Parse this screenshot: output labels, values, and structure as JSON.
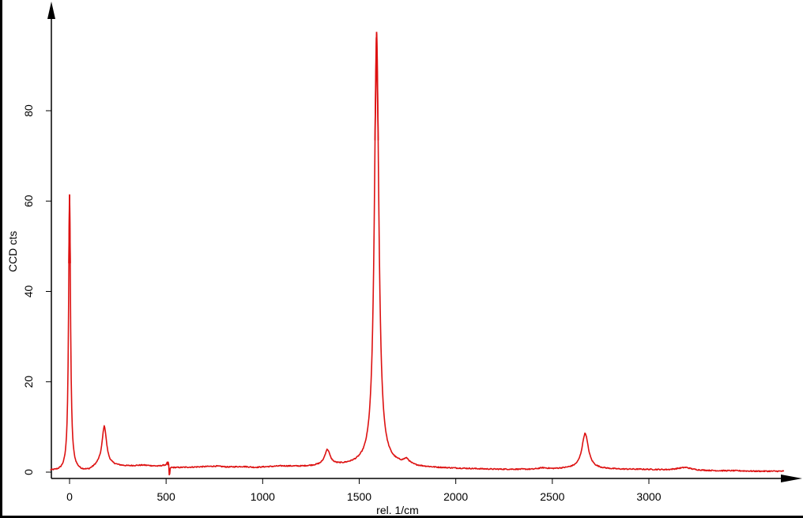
{
  "chart_data": {
    "type": "line",
    "title": "",
    "xlabel": "rel. 1/cm",
    "ylabel": "CCD cts",
    "xlim": [
      -100,
      3700
    ],
    "ylim": [
      0,
      100
    ],
    "grid": false,
    "line_color": "#dd1111",
    "x_ticks": [
      0,
      500,
      1000,
      1500,
      2000,
      2500,
      3000
    ],
    "y_ticks": [
      0,
      20,
      40,
      60,
      80
    ],
    "baseline_points": [
      [
        -100,
        0.3
      ],
      [
        -50,
        0.2
      ],
      [
        20,
        0.6
      ],
      [
        60,
        0.2
      ],
      [
        100,
        0.3
      ],
      [
        150,
        1.4
      ],
      [
        220,
        1.4
      ],
      [
        300,
        1.3
      ],
      [
        380,
        1.5
      ],
      [
        460,
        1.3
      ],
      [
        500,
        1.6
      ],
      [
        505,
        2.1
      ],
      [
        515,
        0.3
      ],
      [
        525,
        1.0
      ],
      [
        560,
        1.0
      ],
      [
        650,
        1.1
      ],
      [
        760,
        1.3
      ],
      [
        820,
        1.1
      ],
      [
        900,
        1.2
      ],
      [
        960,
        1.0
      ],
      [
        1000,
        1.1
      ],
      [
        1100,
        1.3
      ],
      [
        1200,
        1.2
      ],
      [
        1280,
        1.3
      ],
      [
        1400,
        1.4
      ],
      [
        1500,
        1.5
      ],
      [
        1700,
        1.4
      ],
      [
        1800,
        1.1
      ],
      [
        1900,
        0.9
      ],
      [
        2000,
        0.8
      ],
      [
        2100,
        0.7
      ],
      [
        2200,
        0.6
      ],
      [
        2300,
        0.6
      ],
      [
        2400,
        0.6
      ],
      [
        2450,
        0.9
      ],
      [
        2500,
        0.7
      ],
      [
        2600,
        0.8
      ],
      [
        2750,
        0.7
      ],
      [
        2850,
        0.6
      ],
      [
        2950,
        0.6
      ],
      [
        3100,
        0.5
      ],
      [
        3150,
        0.6
      ],
      [
        3250,
        0.4
      ],
      [
        3350,
        0.3
      ],
      [
        3450,
        0.3
      ],
      [
        3550,
        0.2
      ],
      [
        3650,
        0.2
      ]
    ],
    "peaks": [
      {
        "center": 0,
        "height": 61,
        "width": 6
      },
      {
        "center": 180,
        "height": 8.7,
        "width": 14
      },
      {
        "center": 1335,
        "height": 3.4,
        "width": 17
      },
      {
        "center": 1590,
        "height": 96,
        "width": 14
      },
      {
        "center": 1745,
        "height": 1.1,
        "width": 18
      },
      {
        "center": 2670,
        "height": 7.8,
        "width": 20
      },
      {
        "center": 3190,
        "height": 0.5,
        "width": 35
      }
    ],
    "spike": {
      "center": 515,
      "up": 1.0,
      "down": -1.0
    },
    "noise_amplitude": 0.12,
    "samples": 1400
  }
}
